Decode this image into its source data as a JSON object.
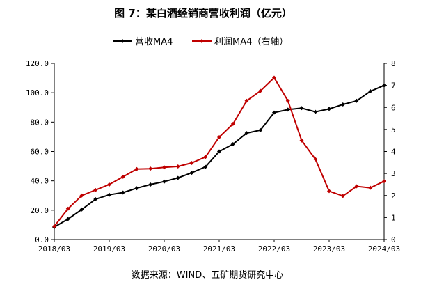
{
  "chart_data": {
    "type": "line",
    "title": "图 7：某白酒经销商营收利润（亿元）",
    "source": "数据来源：WIND、五矿期货研究中心",
    "x": [
      "2018/03",
      "2018/06",
      "2018/09",
      "2018/12",
      "2019/03",
      "2019/06",
      "2019/09",
      "2019/12",
      "2020/03",
      "2020/06",
      "2020/09",
      "2020/12",
      "2021/03",
      "2021/06",
      "2021/09",
      "2021/12",
      "2022/03",
      "2022/06",
      "2022/09",
      "2022/12",
      "2023/03",
      "2023/06",
      "2023/09",
      "2023/12",
      "2024/03"
    ],
    "x_tick_labels": [
      "2018/03",
      "2019/03",
      "2020/03",
      "2021/03",
      "2022/03",
      "2023/03",
      "2024/03"
    ],
    "y_left": {
      "min": 0,
      "max": 120,
      "step": 20,
      "tick_labels": [
        "0.0",
        "20.0",
        "40.0",
        "60.0",
        "80.0",
        "100.0",
        "120.0"
      ]
    },
    "y_right": {
      "min": 0,
      "max": 8,
      "step": 1,
      "tick_labels": [
        "0",
        "1",
        "2",
        "3",
        "4",
        "5",
        "6",
        "7",
        "8"
      ]
    },
    "series": [
      {
        "name": "营收MA4",
        "axis": "left",
        "color": "#000000",
        "marker": "diamond",
        "values": [
          8.5,
          14,
          20.5,
          27.5,
          30.5,
          32,
          35,
          37.5,
          39.5,
          42,
          45.5,
          49.5,
          60,
          65,
          72.5,
          74.5,
          86.5,
          88.5,
          89.5,
          87,
          89,
          92,
          94.5,
          101,
          105
        ]
      },
      {
        "name": "利润MA4（右轴）",
        "axis": "right",
        "color": "#C00000",
        "marker": "diamond",
        "values": [
          0.6,
          1.4,
          2.0,
          2.25,
          2.5,
          2.85,
          3.2,
          3.22,
          3.28,
          3.32,
          3.48,
          3.75,
          4.65,
          5.25,
          6.3,
          6.75,
          7.35,
          6.3,
          4.5,
          3.65,
          2.2,
          1.98,
          2.42,
          2.35,
          2.65
        ]
      }
    ]
  }
}
